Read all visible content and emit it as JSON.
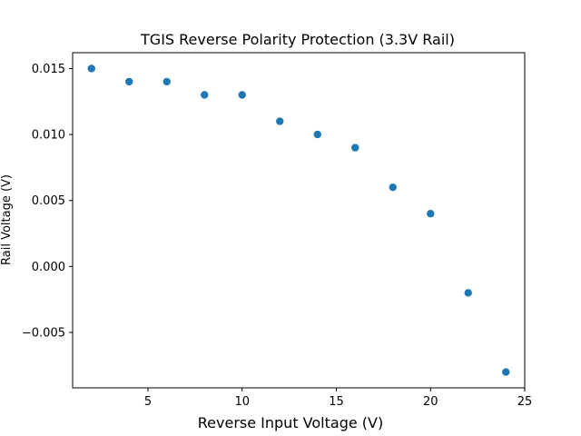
{
  "chart_data": {
    "type": "scatter",
    "title": "TGIS Reverse Polarity Protection (3.3V Rail)",
    "xlabel": "Reverse Input Voltage (V)",
    "ylabel": "Rail Voltage (V)",
    "xlim": [
      1.0,
      25.0
    ],
    "ylim": [
      -0.0092,
      0.0162
    ],
    "x_ticks": [
      5,
      10,
      15,
      20,
      25
    ],
    "x_tick_labels": [
      "5",
      "10",
      "15",
      "20",
      "25"
    ],
    "y_ticks": [
      -0.005,
      0.0,
      0.005,
      0.01,
      0.015
    ],
    "y_tick_labels": [
      "−0.005",
      "0.000",
      "0.005",
      "0.010",
      "0.015"
    ],
    "grid": false,
    "marker_color": "#1f77b4",
    "series": [
      {
        "x": [
          2,
          4,
          6,
          8,
          10,
          12,
          14,
          16,
          18,
          20,
          22,
          24
        ],
        "y": [
          0.015,
          0.014,
          0.014,
          0.013,
          0.013,
          0.011,
          0.01,
          0.009,
          0.006,
          0.004,
          -0.002,
          -0.008
        ]
      }
    ]
  }
}
